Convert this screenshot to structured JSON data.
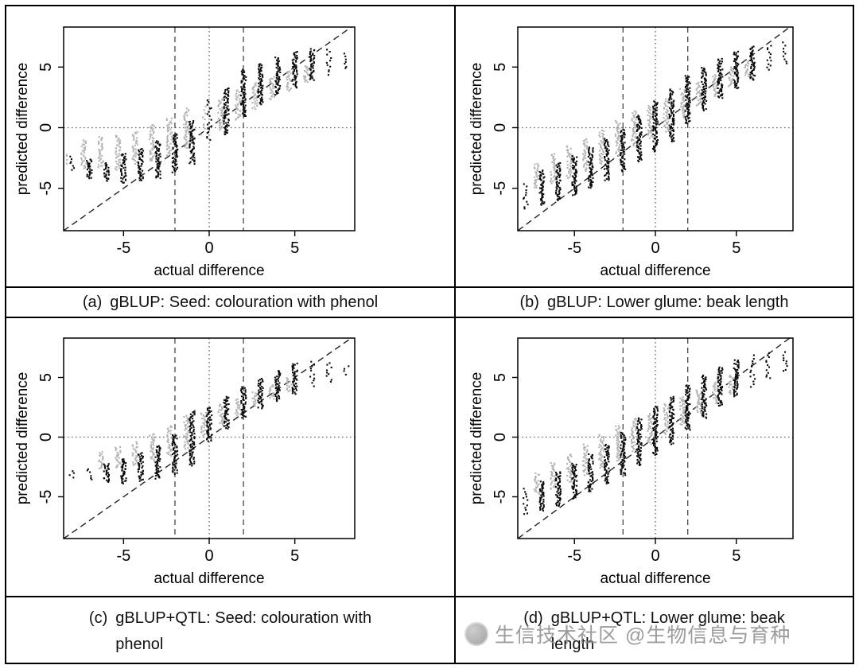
{
  "watermark": {
    "text": "生信技术社区 @生物信息与育种"
  },
  "colors": {
    "points_black": "#0a0a0a",
    "points_gray": "#b4b4b4",
    "axis": "#000000",
    "ref_dashed": "#3a3a3a",
    "ref_dotted": "#666666",
    "watermark": "#8f8f8f"
  },
  "chart_data": {
    "type": "scatter",
    "shared_axes": {
      "xlabel": "actual difference",
      "ylabel": "predicted difference",
      "xlim": [
        -8.5,
        8.5
      ],
      "ylim": [
        -8.5,
        8.3
      ],
      "xticks": [
        -5,
        0,
        5
      ],
      "yticks": [
        -5,
        0,
        5
      ],
      "diagonal_dashed": true,
      "dotted_h": 0,
      "dotted_v": 0,
      "dashed_v": [
        -2,
        2
      ],
      "grid": false,
      "legend": "none"
    },
    "panels": [
      {
        "id": "a",
        "caption_marker": "(a)",
        "caption_text": "gBLUP: Seed: colouration with phenol",
        "strips": [
          {
            "x": -8,
            "black": [
              -3.6,
              -2.3
            ],
            "gray": [
              -3.1,
              -2.0
            ],
            "sparse": true
          },
          {
            "x": -7,
            "black": [
              -4.2,
              -2.6
            ],
            "gray": [
              -3.4,
              -1.0
            ]
          },
          {
            "x": -6,
            "black": [
              -4.4,
              -2.9
            ],
            "gray": [
              -3.3,
              -0.7
            ]
          },
          {
            "x": -5,
            "black": [
              -4.6,
              -2.1
            ],
            "gray": [
              -3.5,
              -0.6
            ]
          },
          {
            "x": -4,
            "black": [
              -4.4,
              -1.7
            ],
            "gray": [
              -3.0,
              -0.3
            ]
          },
          {
            "x": -3,
            "black": [
              -4.2,
              -1.1
            ],
            "gray": [
              -2.8,
              0.3
            ]
          },
          {
            "x": -2,
            "black": [
              -3.7,
              -0.5
            ],
            "gray": [
              -2.3,
              0.8
            ]
          },
          {
            "x": -1,
            "black": [
              -3.0,
              0.6
            ],
            "gray": [
              -1.7,
              1.6
            ]
          },
          {
            "x": 0,
            "black": [
              -1.2,
              2.4
            ],
            "gray": [
              -0.6,
              1.8
            ],
            "sparse": true
          },
          {
            "x": 1,
            "black": [
              -0.6,
              3.3
            ],
            "gray": [
              -0.2,
              2.4
            ]
          },
          {
            "x": 2,
            "black": [
              0.9,
              4.8
            ],
            "gray": [
              0.6,
              3.1
            ]
          },
          {
            "x": 3,
            "black": [
              1.9,
              5.3
            ],
            "gray": [
              1.5,
              3.7
            ]
          },
          {
            "x": 4,
            "black": [
              2.7,
              5.8
            ],
            "gray": [
              2.3,
              4.2
            ]
          },
          {
            "x": 5,
            "black": [
              3.3,
              6.3
            ],
            "gray": [
              3.0,
              4.7
            ]
          },
          {
            "x": 6,
            "black": [
              3.9,
              6.5
            ],
            "gray": [
              3.7,
              5.1
            ]
          },
          {
            "x": 7,
            "black": [
              4.3,
              6.5
            ],
            "sparse": true
          },
          {
            "x": 8,
            "black": [
              4.8,
              6.2
            ],
            "sparse": true
          }
        ]
      },
      {
        "id": "b",
        "caption_marker": "(b)",
        "caption_text": "gBLUP: Lower glume: beak length",
        "strips": [
          {
            "x": -8,
            "black": [
              -6.8,
              -4.6
            ],
            "sparse": true
          },
          {
            "x": -7,
            "black": [
              -6.4,
              -3.5
            ],
            "gray": [
              -5.0,
              -2.9
            ]
          },
          {
            "x": -6,
            "black": [
              -6.0,
              -2.9
            ],
            "gray": [
              -4.6,
              -2.1
            ]
          },
          {
            "x": -5,
            "black": [
              -5.6,
              -2.3
            ],
            "gray": [
              -4.2,
              -1.5
            ]
          },
          {
            "x": -4,
            "black": [
              -5.0,
              -1.6
            ],
            "gray": [
              -3.6,
              -0.9
            ]
          },
          {
            "x": -3,
            "black": [
              -4.4,
              -0.9
            ],
            "gray": [
              -3.0,
              -0.2
            ]
          },
          {
            "x": -2,
            "black": [
              -3.6,
              -0.1
            ],
            "gray": [
              -2.4,
              0.6
            ]
          },
          {
            "x": -1,
            "black": [
              -2.8,
              1.0
            ],
            "gray": [
              -1.6,
              1.4
            ]
          },
          {
            "x": 0,
            "black": [
              -2.0,
              2.2
            ],
            "gray": [
              -0.9,
              1.8
            ]
          },
          {
            "x": 1,
            "black": [
              -1.2,
              3.2
            ],
            "gray": [
              -0.4,
              2.4
            ]
          },
          {
            "x": 2,
            "black": [
              0.3,
              4.3
            ],
            "gray": [
              0.8,
              3.2
            ]
          },
          {
            "x": 3,
            "black": [
              1.4,
              5.0
            ],
            "gray": [
              1.8,
              3.8
            ]
          },
          {
            "x": 4,
            "black": [
              2.4,
              5.7
            ],
            "gray": [
              2.6,
              4.4
            ]
          },
          {
            "x": 5,
            "black": [
              3.2,
              6.3
            ],
            "gray": [
              3.4,
              5.0
            ]
          },
          {
            "x": 6,
            "black": [
              3.9,
              6.7
            ],
            "gray": [
              4.2,
              5.5
            ]
          },
          {
            "x": 7,
            "black": [
              4.6,
              6.9
            ],
            "sparse": true
          },
          {
            "x": 8,
            "black": [
              5.2,
              7.1
            ],
            "sparse": true
          }
        ]
      },
      {
        "id": "c",
        "caption_marker": "(c)",
        "caption_text": "gBLUP+QTL: Seed: colouration with\nphenol",
        "strips": [
          {
            "x": -8,
            "black": [
              -3.5,
              -2.7
            ],
            "sparse": true
          },
          {
            "x": -7,
            "black": [
              -3.7,
              -2.5
            ],
            "sparse": true
          },
          {
            "x": -6,
            "black": [
              -3.8,
              -2.2
            ],
            "gray": [
              -2.7,
              -1.2
            ]
          },
          {
            "x": -5,
            "black": [
              -3.9,
              -1.8
            ],
            "gray": [
              -2.6,
              -0.8
            ]
          },
          {
            "x": -4,
            "black": [
              -3.7,
              -1.3
            ],
            "gray": [
              -2.4,
              -0.4
            ]
          },
          {
            "x": -3,
            "black": [
              -3.5,
              -0.7
            ],
            "gray": [
              -2.0,
              0.3
            ]
          },
          {
            "x": -2,
            "black": [
              -3.1,
              0.2
            ],
            "gray": [
              -1.6,
              1.0
            ]
          },
          {
            "x": -1,
            "black": [
              -2.4,
              2.2
            ],
            "gray": [
              -1.0,
              1.8
            ]
          },
          {
            "x": 0,
            "black": [
              -0.4,
              2.5
            ],
            "gray": [
              0.1,
              2.1
            ]
          },
          {
            "x": 1,
            "black": [
              0.7,
              3.4
            ],
            "gray": [
              1.0,
              2.8
            ]
          },
          {
            "x": 2,
            "black": [
              1.6,
              4.2
            ],
            "gray": [
              1.8,
              3.2
            ]
          },
          {
            "x": 3,
            "black": [
              2.4,
              4.9
            ],
            "gray": [
              2.6,
              3.8
            ]
          },
          {
            "x": 4,
            "black": [
              3.0,
              5.6
            ],
            "gray": [
              3.2,
              4.4
            ]
          },
          {
            "x": 5,
            "black": [
              3.6,
              6.2
            ],
            "gray": [
              3.8,
              5.0
            ]
          },
          {
            "x": 6,
            "black": [
              4.2,
              6.4
            ],
            "sparse": true
          },
          {
            "x": 7,
            "black": [
              4.6,
              6.3
            ],
            "sparse": true
          },
          {
            "x": 8,
            "black": [
              5.2,
              6.1
            ],
            "sparse": true
          }
        ]
      },
      {
        "id": "d",
        "caption_marker": "(d)",
        "caption_text": "gBLUP+QTL: Lower glume: beak\nlength",
        "strips": [
          {
            "x": -8,
            "black": [
              -6.6,
              -4.3
            ],
            "sparse": true
          },
          {
            "x": -7,
            "black": [
              -6.2,
              -3.7
            ],
            "gray": [
              -4.8,
              -3.0
            ]
          },
          {
            "x": -6,
            "black": [
              -5.8,
              -2.9
            ],
            "gray": [
              -4.4,
              -2.1
            ]
          },
          {
            "x": -5,
            "black": [
              -5.2,
              -2.2
            ],
            "gray": [
              -3.8,
              -1.4
            ]
          },
          {
            "x": -4,
            "black": [
              -4.6,
              -1.4
            ],
            "gray": [
              -3.2,
              -0.6
            ]
          },
          {
            "x": -3,
            "black": [
              -3.9,
              -0.6
            ],
            "gray": [
              -2.6,
              0.2
            ]
          },
          {
            "x": -2,
            "black": [
              -3.2,
              0.4
            ],
            "gray": [
              -2.0,
              1.0
            ]
          },
          {
            "x": -1,
            "black": [
              -2.4,
              1.6
            ],
            "gray": [
              -1.2,
              1.6
            ]
          },
          {
            "x": 0,
            "black": [
              -1.5,
              2.6
            ],
            "gray": [
              -0.6,
              2.0
            ]
          },
          {
            "x": 1,
            "black": [
              -0.6,
              3.4
            ],
            "gray": [
              0.2,
              2.8
            ]
          },
          {
            "x": 2,
            "black": [
              0.6,
              4.4
            ],
            "gray": [
              1.0,
              3.4
            ]
          },
          {
            "x": 3,
            "black": [
              1.6,
              5.2
            ],
            "gray": [
              2.0,
              4.0
            ]
          },
          {
            "x": 4,
            "black": [
              2.6,
              5.9
            ],
            "gray": [
              2.8,
              4.6
            ]
          },
          {
            "x": 5,
            "black": [
              3.4,
              6.5
            ],
            "gray": [
              3.6,
              5.2
            ]
          },
          {
            "x": 6,
            "black": [
              4.2,
              6.9
            ],
            "sparse": true
          },
          {
            "x": 7,
            "black": [
              4.8,
              7.1
            ],
            "sparse": true
          },
          {
            "x": 8,
            "black": [
              5.4,
              7.2
            ],
            "sparse": true
          }
        ]
      }
    ]
  }
}
